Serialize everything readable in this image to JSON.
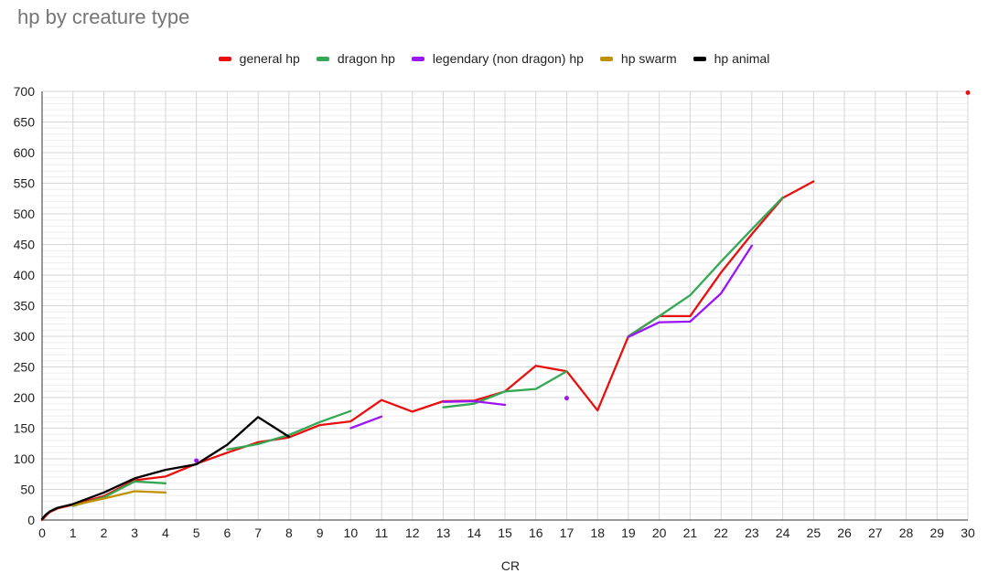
{
  "chart_data": {
    "type": "line",
    "title": "hp by creature type",
    "xlabel": "CR",
    "ylabel": "",
    "xlim": [
      0,
      30
    ],
    "ylim": [
      0,
      700
    ],
    "x_ticks": [
      0,
      1,
      2,
      3,
      4,
      5,
      6,
      7,
      8,
      9,
      10,
      11,
      12,
      13,
      14,
      15,
      16,
      17,
      18,
      19,
      20,
      21,
      22,
      23,
      24,
      25,
      26,
      27,
      28,
      29,
      30
    ],
    "y_ticks": [
      0,
      50,
      100,
      150,
      200,
      250,
      300,
      350,
      400,
      450,
      500,
      550,
      600,
      650,
      700
    ],
    "grid": true,
    "legend_position": "top",
    "series": [
      {
        "name": "general hp",
        "color": "#ea0f0f",
        "segments": [
          [
            [
              0,
              0
            ],
            [
              0.125,
              7
            ],
            [
              0.25,
              13
            ],
            [
              0.5,
              19
            ],
            [
              1,
              25
            ],
            [
              2,
              39
            ],
            [
              3,
              65
            ],
            [
              4,
              71
            ],
            [
              5,
              92
            ],
            [
              6,
              110
            ],
            [
              7,
              127
            ],
            [
              8,
              135
            ],
            [
              9,
              155
            ],
            [
              10,
              161
            ],
            [
              11,
              196
            ],
            [
              12,
              177
            ],
            [
              13,
              194
            ],
            [
              14,
              195
            ],
            [
              15,
              210
            ],
            [
              16,
              252
            ],
            [
              17,
              243
            ],
            [
              18,
              179
            ],
            [
              19,
              300
            ],
            [
              20,
              333
            ],
            [
              21,
              333
            ],
            [
              22,
              404
            ],
            [
              23,
              467
            ],
            [
              24,
              526
            ],
            [
              25,
              553
            ]
          ],
          [
            [
              30,
              698
            ]
          ]
        ]
      },
      {
        "name": "dragon hp",
        "color": "#34a853",
        "segments": [
          [
            [
              1,
              23
            ],
            [
              2,
              37
            ],
            [
              3,
              63
            ],
            [
              4,
              60
            ]
          ],
          [
            [
              6,
              115
            ],
            [
              7,
              124
            ],
            [
              8,
              139
            ],
            [
              9,
              160
            ],
            [
              10,
              178
            ]
          ],
          [
            [
              13,
              184
            ],
            [
              14,
              190
            ],
            [
              15,
              210
            ],
            [
              16,
              214
            ],
            [
              17,
              243
            ]
          ],
          [
            [
              19,
              300
            ],
            [
              20,
              333
            ],
            [
              21,
              367
            ],
            [
              22,
              422
            ],
            [
              23,
              475
            ],
            [
              24,
              527
            ]
          ]
        ]
      },
      {
        "name": "legendary (non dragon) hp",
        "color": "#9b15f5",
        "segments": [
          [
            [
              5,
              97
            ]
          ],
          [
            [
              10,
              150
            ],
            [
              11,
              169
            ]
          ],
          [
            [
              13,
              193
            ],
            [
              14,
              194
            ],
            [
              15,
              188
            ]
          ],
          [
            [
              17,
              199
            ]
          ],
          [
            [
              19,
              299
            ],
            [
              20,
              323
            ],
            [
              21,
              324
            ],
            [
              22,
              370
            ],
            [
              23,
              448
            ]
          ]
        ]
      },
      {
        "name": "hp swarm",
        "color": "#bf9000",
        "segments": [
          [
            [
              1,
              24
            ],
            [
              2,
              35
            ],
            [
              3,
              47
            ],
            [
              4,
              45
            ]
          ]
        ]
      },
      {
        "name": "hp animal",
        "color": "#000000",
        "segments": [
          [
            [
              0,
              2
            ],
            [
              0.125,
              9
            ],
            [
              0.25,
              14
            ],
            [
              0.5,
              20
            ],
            [
              1,
              26
            ],
            [
              2,
              45
            ],
            [
              3,
              68
            ],
            [
              4,
              82
            ],
            [
              5,
              91
            ],
            [
              6,
              123
            ],
            [
              7,
              168
            ],
            [
              8,
              136
            ]
          ]
        ]
      }
    ]
  }
}
